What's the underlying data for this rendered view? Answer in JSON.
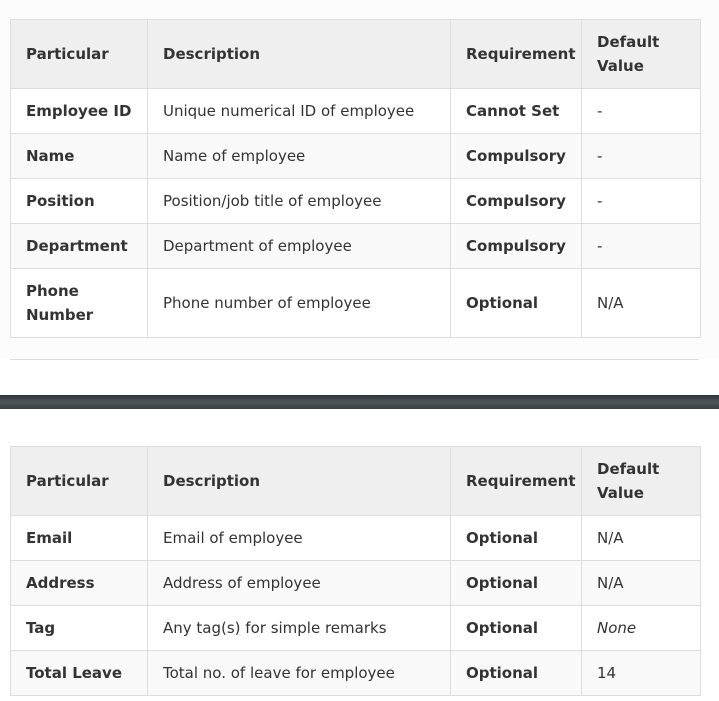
{
  "headers": [
    "Particular",
    "Description",
    "Requirement",
    "Default Value"
  ],
  "table1": [
    {
      "particular": "Employee ID",
      "description": "Unique numerical ID of employee",
      "requirement": "Cannot Set",
      "default": "-"
    },
    {
      "particular": "Name",
      "description": "Name of employee",
      "requirement": "Compulsory",
      "default": "-"
    },
    {
      "particular": "Position",
      "description": "Position/job title of employee",
      "requirement": "Compulsory",
      "default": "-"
    },
    {
      "particular": "Department",
      "description": "Department of employee",
      "requirement": "Compulsory",
      "default": "-"
    },
    {
      "particular": "Phone Number",
      "description": "Phone number of employee",
      "requirement": "Optional",
      "default": "N/A"
    }
  ],
  "table2": [
    {
      "particular": "Email",
      "description": "Email of employee",
      "requirement": "Optional",
      "default": "N/A"
    },
    {
      "particular": "Address",
      "description": "Address of employee",
      "requirement": "Optional",
      "default": "N/A"
    },
    {
      "particular": "Tag",
      "description": "Any tag(s) for simple remarks",
      "requirement": "Optional",
      "default": "None"
    },
    {
      "particular": "Total Leave",
      "description": "Total no. of leave for employee",
      "requirement": "Optional",
      "default": "14"
    }
  ]
}
